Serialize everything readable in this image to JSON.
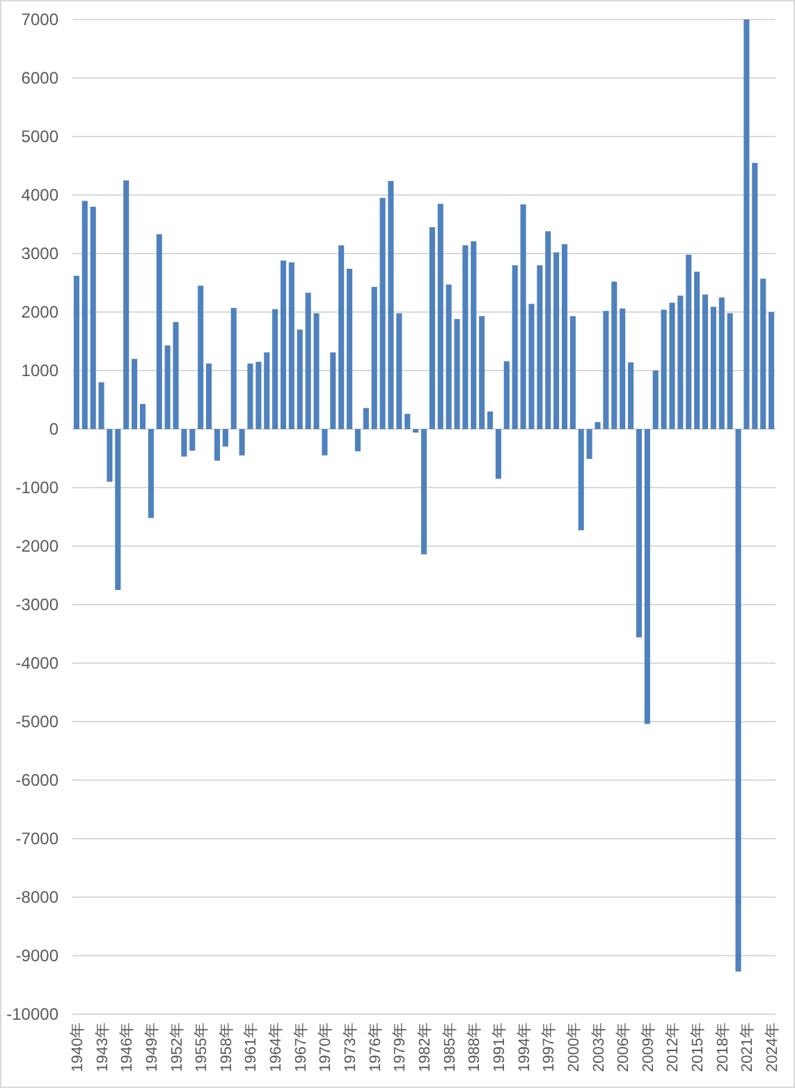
{
  "chart_data": {
    "type": "bar",
    "categories": [
      "1940年",
      null,
      null,
      "1943年",
      null,
      null,
      "1946年",
      null,
      null,
      "1949年",
      null,
      null,
      "1952年",
      null,
      null,
      "1955年",
      null,
      null,
      "1958年",
      null,
      null,
      "1961年",
      null,
      null,
      "1964年",
      null,
      null,
      "1967年",
      null,
      null,
      "1970年",
      null,
      null,
      "1973年",
      null,
      null,
      "1976年",
      null,
      null,
      "1979年",
      null,
      null,
      "1982年",
      null,
      null,
      "1985年",
      null,
      null,
      "1988年",
      null,
      null,
      "1991年",
      null,
      null,
      "1994年",
      null,
      null,
      "1997年",
      null,
      null,
      "2000年",
      null,
      null,
      "2003年",
      null,
      null,
      "2006年",
      null,
      null,
      "2009年",
      null,
      null,
      "2012年",
      null,
      null,
      "2015年",
      null,
      null,
      "2018年",
      null,
      null,
      "2021年",
      null,
      null,
      "2024年"
    ],
    "values": [
      2620,
      3900,
      3800,
      800,
      -900,
      -2750,
      4250,
      1200,
      430,
      -1520,
      3330,
      1430,
      1830,
      -470,
      -370,
      2450,
      1120,
      -540,
      -300,
      2070,
      -450,
      1120,
      1150,
      1310,
      2050,
      2880,
      2850,
      1700,
      2330,
      1980,
      -450,
      1310,
      3140,
      2740,
      -380,
      360,
      2430,
      3950,
      4240,
      1980,
      260,
      -60,
      -2140,
      3450,
      3850,
      2470,
      1880,
      3140,
      3210,
      1930,
      300,
      -850,
      1160,
      2800,
      3840,
      2140,
      2800,
      3380,
      3020,
      3160,
      1930,
      -1730,
      -510,
      120,
      2020,
      2520,
      2060,
      1140,
      -3560,
      -5040,
      1000,
      2040,
      2160,
      2280,
      2980,
      2690,
      2300,
      2090,
      2250,
      1980,
      -9270,
      7000,
      4550,
      2570,
      2000
    ],
    "color": "#4f81bd",
    "ylim": [
      -10000,
      7000
    ],
    "yticks": [
      -10000,
      -9000,
      -8000,
      -7000,
      -6000,
      -5000,
      -4000,
      -3000,
      -2000,
      -1000,
      0,
      1000,
      2000,
      3000,
      4000,
      5000,
      6000,
      7000
    ],
    "grid": "y"
  }
}
